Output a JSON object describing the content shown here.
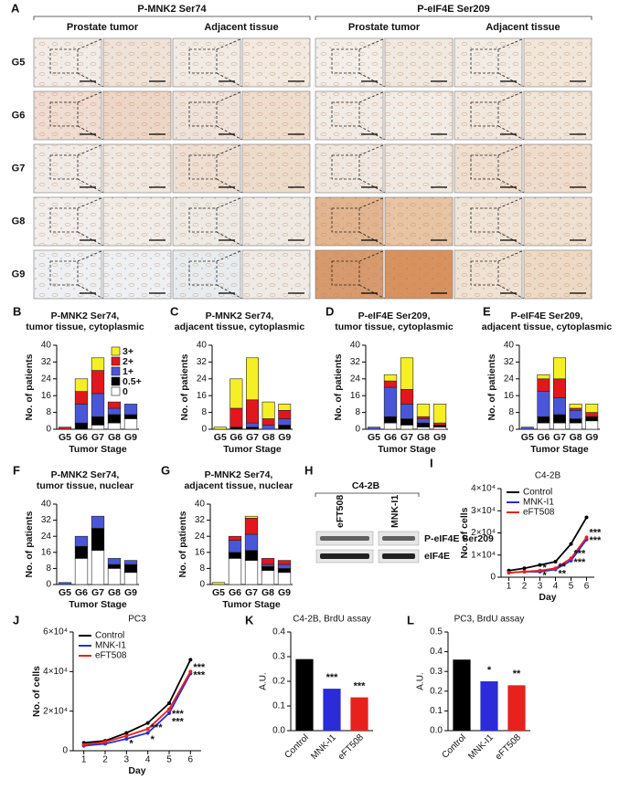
{
  "panel_a": {
    "label": "A",
    "groups": [
      {
        "title": "P-MNK2 Ser74",
        "columns": [
          "Prostate tumor",
          "Adjacent tissue"
        ]
      },
      {
        "title": "P-eIF4E Ser209",
        "columns": [
          "Prostate tumor",
          "Adjacent tissue"
        ]
      }
    ],
    "rows": [
      "G5",
      "G6",
      "G7",
      "G8",
      "G9"
    ]
  },
  "panel_h": {
    "label": "H",
    "cell_line": "C4-2B",
    "lanes": [
      "eFT508",
      "MNK-I1"
    ],
    "bands": [
      "P-eIF4E Ser209",
      "eIF4E"
    ]
  },
  "chart_data": [
    {
      "type": "stacked_bar",
      "panel": "B",
      "title": [
        "P-MNK2 Ser74,",
        "tumor tissue, cytoplasmic"
      ],
      "ylabel": "No. of patients",
      "xlabel": "Tumor Stage",
      "categories": [
        "G5",
        "G6",
        "G7",
        "G8",
        "G9"
      ],
      "ylim": [
        0,
        40
      ],
      "yticks": [
        0,
        8,
        16,
        24,
        32,
        40
      ],
      "legend": "upper right",
      "series": [
        {
          "name": "0",
          "color": "#ffffff",
          "values": [
            0,
            0,
            2,
            3,
            5
          ]
        },
        {
          "name": "0.5+",
          "color": "#000000",
          "values": [
            0,
            3,
            4,
            4,
            2
          ]
        },
        {
          "name": "1+",
          "color": "#4a56d8",
          "values": [
            0,
            9,
            11,
            3,
            5
          ]
        },
        {
          "name": "2+",
          "color": "#e3161c",
          "values": [
            1,
            6,
            11,
            3,
            0
          ]
        },
        {
          "name": "3+",
          "color": "#f5f023",
          "values": [
            0,
            6,
            6,
            0,
            0
          ]
        }
      ]
    },
    {
      "type": "stacked_bar",
      "panel": "C",
      "title": [
        "P-MNK2 Ser74,",
        "adjacent tissue, cytoplasmic"
      ],
      "ylabel": "No. of patients",
      "xlabel": "Tumor Stage",
      "categories": [
        "G5",
        "G6",
        "G7",
        "G8",
        "G9"
      ],
      "ylim": [
        0,
        40
      ],
      "yticks": [
        0,
        8,
        16,
        24,
        32,
        40
      ],
      "series": [
        {
          "color": "#ffffff",
          "values": [
            0,
            0,
            0,
            0,
            0
          ]
        },
        {
          "color": "#000000",
          "values": [
            0,
            1,
            1,
            0,
            2
          ]
        },
        {
          "color": "#4a56d8",
          "values": [
            0,
            0,
            2,
            2,
            3
          ]
        },
        {
          "color": "#e3161c",
          "values": [
            0,
            9,
            11,
            3,
            4
          ]
        },
        {
          "color": "#f5f023",
          "values": [
            1,
            14,
            20,
            8,
            3
          ]
        }
      ]
    },
    {
      "type": "stacked_bar",
      "panel": "D",
      "title": [
        "P-eIF4E Ser209,",
        "tumor tissue, cytoplasmic"
      ],
      "ylabel": "No. of patients",
      "xlabel": "Tumor Stage",
      "categories": [
        "G5",
        "G6",
        "G7",
        "G8",
        "G9"
      ],
      "ylim": [
        0,
        40
      ],
      "yticks": [
        0,
        8,
        16,
        24,
        32,
        40
      ],
      "series": [
        {
          "color": "#ffffff",
          "values": [
            0,
            3,
            2,
            1,
            1
          ]
        },
        {
          "color": "#000000",
          "values": [
            0,
            3,
            3,
            2,
            1
          ]
        },
        {
          "color": "#4a56d8",
          "values": [
            1,
            14,
            7,
            2,
            0
          ]
        },
        {
          "color": "#e3161c",
          "values": [
            0,
            3,
            7,
            1,
            1
          ]
        },
        {
          "color": "#f5f023",
          "values": [
            0,
            3,
            15,
            6,
            9
          ]
        }
      ]
    },
    {
      "type": "stacked_bar",
      "panel": "E",
      "title": [
        "P-eIF4E Ser209,",
        "adjacent tissue, cytoplasmic"
      ],
      "ylabel": "No. of patients",
      "xlabel": "Tumor Stage",
      "categories": [
        "G5",
        "G6",
        "G7",
        "G8",
        "G9"
      ],
      "ylim": [
        0,
        40
      ],
      "yticks": [
        0,
        8,
        16,
        24,
        32,
        40
      ],
      "series": [
        {
          "color": "#ffffff",
          "values": [
            0,
            3,
            3,
            3,
            4
          ]
        },
        {
          "color": "#000000",
          "values": [
            0,
            3,
            4,
            2,
            2
          ]
        },
        {
          "color": "#4a56d8",
          "values": [
            1,
            12,
            8,
            4,
            0
          ]
        },
        {
          "color": "#e3161c",
          "values": [
            0,
            6,
            9,
            1,
            2
          ]
        },
        {
          "color": "#f5f023",
          "values": [
            0,
            2,
            10,
            2,
            4
          ]
        }
      ]
    },
    {
      "type": "stacked_bar",
      "panel": "F",
      "title": [
        "P-MNK2 Ser74,",
        "tumor tissue, nuclear"
      ],
      "ylabel": "No. of patients",
      "xlabel": "Tumor Stage",
      "categories": [
        "G5",
        "G6",
        "G7",
        "G8",
        "G9"
      ],
      "ylim": [
        0,
        40
      ],
      "yticks": [
        0,
        8,
        16,
        24,
        32,
        40
      ],
      "series": [
        {
          "color": "#ffffff",
          "values": [
            0,
            13,
            17,
            8,
            6
          ]
        },
        {
          "color": "#000000",
          "values": [
            0,
            6,
            11,
            2,
            4
          ]
        },
        {
          "color": "#4a56d8",
          "values": [
            1,
            5,
            6,
            3,
            2
          ]
        },
        {
          "color": "#e3161c",
          "values": [
            0,
            0,
            0,
            0,
            0
          ]
        },
        {
          "color": "#f5f023",
          "values": [
            0,
            0,
            0,
            0,
            0
          ]
        }
      ]
    },
    {
      "type": "stacked_bar",
      "panel": "G",
      "title": [
        "P-MNK2 Ser74,",
        "adjacent tissue, nuclear"
      ],
      "ylabel": "No. of patients",
      "xlabel": "Tumor Stage",
      "categories": [
        "G5",
        "G6",
        "G7",
        "G8",
        "G9"
      ],
      "ylim": [
        0,
        40
      ],
      "yticks": [
        0,
        8,
        16,
        24,
        32,
        40
      ],
      "series": [
        {
          "color": "#ffffff",
          "values": [
            0,
            13,
            12,
            7,
            6
          ]
        },
        {
          "color": "#000000",
          "values": [
            0,
            3,
            5,
            2,
            2
          ]
        },
        {
          "color": "#4a56d8",
          "values": [
            0,
            6,
            8,
            1,
            2
          ]
        },
        {
          "color": "#e3161c",
          "values": [
            0,
            2,
            8,
            3,
            2
          ]
        },
        {
          "color": "#f5f023",
          "values": [
            1,
            0,
            1,
            0,
            0
          ]
        }
      ]
    },
    {
      "type": "line",
      "panel": "I",
      "title": [
        "C4-2B"
      ],
      "ylabel": "No. of cells",
      "xlabel": "Day",
      "x": [
        1,
        2,
        3,
        4,
        5,
        6
      ],
      "xlim": [
        0.5,
        6.5
      ],
      "xticks": [
        1,
        2,
        3,
        4,
        5,
        6
      ],
      "ylim": [
        0,
        40000
      ],
      "yticks": [
        0,
        {
          "value": 10000,
          "label": "1×10⁴"
        },
        {
          "value": 20000,
          "label": "2×10⁴"
        },
        {
          "value": 30000,
          "label": "3×10⁴"
        },
        {
          "value": 40000,
          "label": "4×10⁴"
        }
      ],
      "legend": "upper left",
      "series": [
        {
          "name": "Control",
          "color": "#000000",
          "values": [
            3000,
            4000,
            5500,
            7000,
            15000,
            27000
          ]
        },
        {
          "name": "MNK-I1",
          "color": "#2b2bd9",
          "values": [
            2000,
            2500,
            2500,
            3500,
            7500,
            17000
          ]
        },
        {
          "name": "eFT508",
          "color": "#e8211d",
          "values": [
            2000,
            2500,
            3000,
            4000,
            8500,
            18000
          ]
        }
      ],
      "annotations": [
        {
          "text": "***",
          "x": 6,
          "y": 20000
        },
        {
          "text": "***",
          "x": 6,
          "y": 16500
        },
        {
          "text": "***",
          "x": 5,
          "y": 10500
        },
        {
          "text": "***",
          "x": 5,
          "y": 6500
        },
        {
          "text": "**",
          "x": 4,
          "y": 4500
        },
        {
          "text": "**",
          "x": 4,
          "y": 1500
        },
        {
          "text": "*",
          "x": 3,
          "y": 4000
        },
        {
          "text": "*",
          "x": 3,
          "y": 500
        }
      ]
    },
    {
      "type": "line",
      "panel": "J",
      "title": [
        "PC3"
      ],
      "ylabel": "No. of cells",
      "xlabel": "Day",
      "x": [
        1,
        2,
        3,
        4,
        5,
        6
      ],
      "xlim": [
        0.5,
        6.5
      ],
      "xticks": [
        1,
        2,
        3,
        4,
        5,
        6
      ],
      "ylim": [
        0,
        60000
      ],
      "yticks": [
        0,
        {
          "value": 20000,
          "label": "2×10⁴"
        },
        {
          "value": 40000,
          "label": "4×10⁴"
        },
        {
          "value": 60000,
          "label": "6×10⁴"
        }
      ],
      "legend": "upper left",
      "series": [
        {
          "name": "Control",
          "color": "#000000",
          "values": [
            4000,
            5000,
            9000,
            14000,
            24000,
            46000
          ]
        },
        {
          "name": "MNK-I1",
          "color": "#2b2bd9",
          "values": [
            2500,
            3500,
            6000,
            9000,
            19000,
            39000
          ]
        },
        {
          "name": "eFT508",
          "color": "#e8211d",
          "values": [
            3000,
            4500,
            7500,
            11000,
            21000,
            40000
          ]
        }
      ],
      "annotations": [
        {
          "text": "***",
          "x": 6,
          "y": 42000
        },
        {
          "text": "***",
          "x": 6,
          "y": 38000
        },
        {
          "text": "***",
          "x": 5,
          "y": 18500
        },
        {
          "text": "***",
          "x": 5,
          "y": 14500
        },
        {
          "text": "***",
          "x": 4,
          "y": 11500
        },
        {
          "text": "*",
          "x": 4,
          "y": 5500
        },
        {
          "text": "*",
          "x": 3,
          "y": 3500
        }
      ]
    },
    {
      "type": "bar",
      "panel": "K",
      "title": [
        "C4-2B, BrdU assay"
      ],
      "ylabel": "A.U.",
      "categories": [
        "Control",
        "MNK-I1",
        "eFT508"
      ],
      "values": [
        0.29,
        0.17,
        0.135
      ],
      "colors": [
        "#000000",
        "#2b2bd9",
        "#e8211d"
      ],
      "significance": [
        null,
        "***",
        "***"
      ],
      "ylim": [
        0,
        0.4
      ],
      "yticks": [
        {
          "value": 0,
          "label": "0.0"
        },
        0.1,
        0.2,
        0.3,
        0.4
      ]
    },
    {
      "type": "bar",
      "panel": "L",
      "title": [
        "PC3, BrdU assay"
      ],
      "ylabel": "A.U.",
      "categories": [
        "Control",
        "MNK-I1",
        "eFT508"
      ],
      "values": [
        0.36,
        0.25,
        0.23
      ],
      "colors": [
        "#000000",
        "#2b2bd9",
        "#e8211d"
      ],
      "significance": [
        null,
        "*",
        "**"
      ],
      "ylim": [
        0,
        0.5
      ],
      "yticks": [
        {
          "value": 0,
          "label": "0.0"
        },
        0.1,
        0.2,
        0.3,
        0.4,
        0.5
      ]
    }
  ]
}
